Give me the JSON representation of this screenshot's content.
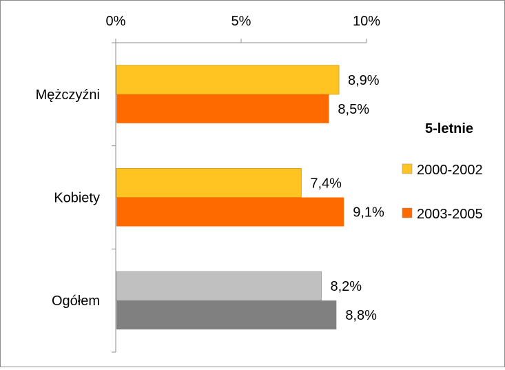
{
  "chart_data": {
    "type": "bar",
    "orientation": "horizontal",
    "categories": [
      "Mężczyźni",
      "Kobiety",
      "Ogółem"
    ],
    "xlim": [
      0,
      10
    ],
    "x_ticks": [
      {
        "value": 0,
        "label": "0%"
      },
      {
        "value": 5,
        "label": "5%"
      },
      {
        "value": 10,
        "label": "10%"
      }
    ],
    "series": [
      {
        "name": "2000-2002",
        "color": "#FFC322",
        "values": [
          8.9,
          7.4,
          8.2
        ],
        "labels": [
          "8,9%",
          "7,4%",
          "8,2%"
        ]
      },
      {
        "name": "2003-2005",
        "color": "#FF6A00",
        "values": [
          8.5,
          9.1,
          8.8
        ],
        "labels": [
          "8,5%",
          "9,1%",
          "8,8%"
        ]
      }
    ],
    "category_overrides": [
      null,
      null,
      {
        "colors": [
          "#C0C0C0",
          "#808080"
        ]
      }
    ],
    "legend": {
      "title": "5-letnie",
      "position": "right"
    },
    "axis_position": "top",
    "grid": false
  }
}
